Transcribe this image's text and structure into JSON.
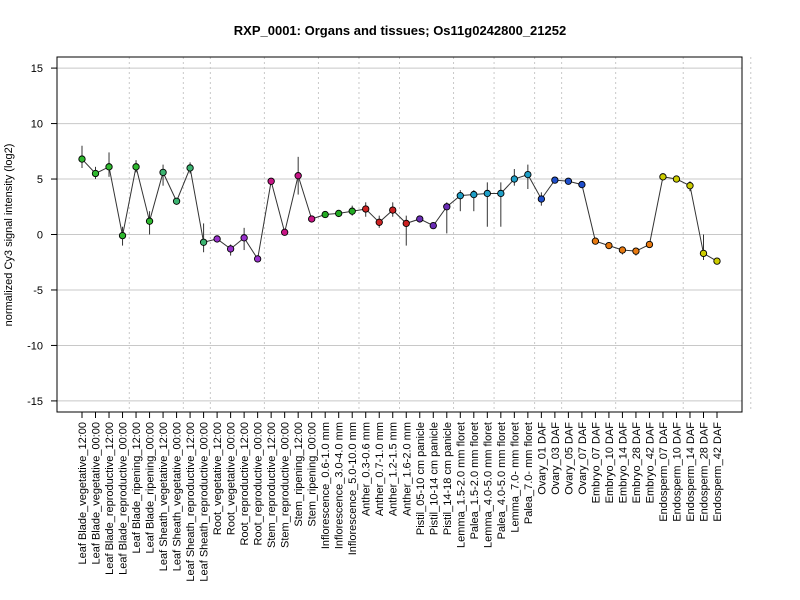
{
  "chart_data": {
    "type": "line",
    "title": "RXP_0001: Organs and tissues; Os11g0242800_21252",
    "xlabel": "",
    "ylabel": "normalized Cy3 signal intensity (log2)",
    "ylim": [
      -16,
      16
    ],
    "yticks": [
      -15,
      -10,
      -5,
      0,
      5,
      10,
      15
    ],
    "grid": true,
    "group_separators_after": [
      3,
      7,
      9,
      13,
      17,
      20,
      23,
      27,
      30,
      33,
      35,
      39,
      44,
      49
    ],
    "categories": [
      "Leaf Blade_vegetative_12:00",
      "Leaf Blade_vegetative_00:00",
      "Leaf Blade_reproductive_12:00",
      "Leaf Blade_reproductive_00:00",
      "Leaf Blade_ripening_12:00",
      "Leaf Blade_ripening_00:00",
      "Leaf Sheath_vegetative_12:00",
      "Leaf Sheath_vegetative_00:00",
      "Leaf Sheath_reproductive_12:00",
      "Leaf Sheath_reproductive_00:00",
      "Root_vegetative_12:00",
      "Root_vegetative_00:00",
      "Root_reproductive_12:00",
      "Root_reproductive_00:00",
      "Stem_reproductive_12:00",
      "Stem_reproductive_00:00",
      "Stem_ripening_12:00",
      "Stem_ripening_00:00",
      "Inflorescence_0.6-1.0 mm",
      "Inflorescence_3.0-4.0 mm",
      "Inflorescence_5.0-10.0 mm",
      "Anther_0.3-0.6 mm",
      "Anther_0.7-1.0 mm",
      "Anther_1.2-1.5 mm",
      "Anther_1.6-2.0 mm",
      "Pistil_05-10 cm panicle",
      "Pistil_10-14 cm panicle",
      "Pistil_14-18 cm panicle",
      "Lemma_1.5-2.0 mm floret",
      "Palea_1.5-2.0 mm floret",
      "Lemma_4.0-5.0 mm floret",
      "Palea_4.0-5.0 mm floret",
      "Lemma_7.0- mm floret",
      "Palea_7.0- mm floret",
      "Ovary_01 DAF",
      "Ovary_03 DAF",
      "Ovary_05 DAF",
      "Ovary_07 DAF",
      "Embryo_07 DAF",
      "Embryo_10 DAF",
      "Embryo_14 DAF",
      "Embryo_28 DAF",
      "Embryo_42 DAF",
      "Endosperm_07 DAF",
      "Endosperm_10 DAF",
      "Endosperm_14 DAF",
      "Endosperm_28 DAF",
      "Endosperm_42 DAF"
    ],
    "values": [
      6.8,
      5.5,
      6.1,
      -0.1,
      6.1,
      1.2,
      5.6,
      3.0,
      6.0,
      -0.7,
      -0.4,
      -1.3,
      -0.3,
      -2.2,
      4.8,
      0.2,
      5.3,
      1.4,
      1.8,
      1.9,
      2.1,
      2.3,
      1.1,
      2.2,
      1.0,
      1.4,
      0.8,
      2.5,
      3.5,
      3.6,
      3.7,
      3.7,
      5.0,
      5.4,
      3.2,
      4.9,
      4.8,
      4.5,
      -0.6,
      -1.0,
      -1.4,
      -1.5,
      -0.9,
      5.2,
      5.0,
      4.4,
      -1.7,
      -2.4
    ],
    "error_low": [
      6.0,
      5.0,
      5.2,
      -1.0,
      5.6,
      0.0,
      4.4,
      3.0,
      5.5,
      -1.6,
      -0.6,
      -1.9,
      -1.4,
      -2.4,
      4.7,
      0.0,
      3.6,
      1.2,
      1.6,
      1.7,
      1.7,
      1.6,
      0.6,
      1.6,
      -1.0,
      1.3,
      0.6,
      0.1,
      2.1,
      2.1,
      0.7,
      0.7,
      4.4,
      4.1,
      2.6,
      4.8,
      4.7,
      4.2,
      -0.8,
      -1.3,
      -1.8,
      -1.9,
      -1.2,
      5.1,
      4.7,
      3.9,
      -2.3,
      -2.6
    ],
    "error_high": [
      8.0,
      6.1,
      7.4,
      0.7,
      6.7,
      2.1,
      6.3,
      3.0,
      6.5,
      1.0,
      -0.2,
      -0.9,
      0.6,
      -2.0,
      4.9,
      0.4,
      7.0,
      1.7,
      2.0,
      2.1,
      2.6,
      2.9,
      1.7,
      2.9,
      1.7,
      1.6,
      1.0,
      2.9,
      4.0,
      4.0,
      4.7,
      4.7,
      5.9,
      6.3,
      3.8,
      5.0,
      4.9,
      4.8,
      -0.4,
      -0.8,
      -1.1,
      -1.2,
      -0.6,
      5.3,
      5.2,
      4.8,
      0.0,
      -2.2
    ],
    "colors": [
      "#2eb82e",
      "#2eb82e",
      "#2eb82e",
      "#2eb82e",
      "#2eb82e",
      "#2eb82e",
      "#3cb371",
      "#3cb371",
      "#3cb371",
      "#3cb371",
      "#9932cc",
      "#9932cc",
      "#9932cc",
      "#9932cc",
      "#c71585",
      "#c71585",
      "#c71585",
      "#c71585",
      "#22aa22",
      "#22aa22",
      "#22aa22",
      "#cc2222",
      "#cc2222",
      "#cc2222",
      "#cc2222",
      "#6a2db5",
      "#6a2db5",
      "#6a2db5",
      "#1f9fc7",
      "#1f9fc7",
      "#1f9fc7",
      "#1f9fc7",
      "#1f9fc7",
      "#1f9fc7",
      "#1f4fcc",
      "#1f4fcc",
      "#1f4fcc",
      "#1f4fcc",
      "#e87a10",
      "#e87a10",
      "#e87a10",
      "#e87a10",
      "#e87a10",
      "#cccc00",
      "#cccc00",
      "#cccc00",
      "#cccc00",
      "#cccc00"
    ]
  }
}
